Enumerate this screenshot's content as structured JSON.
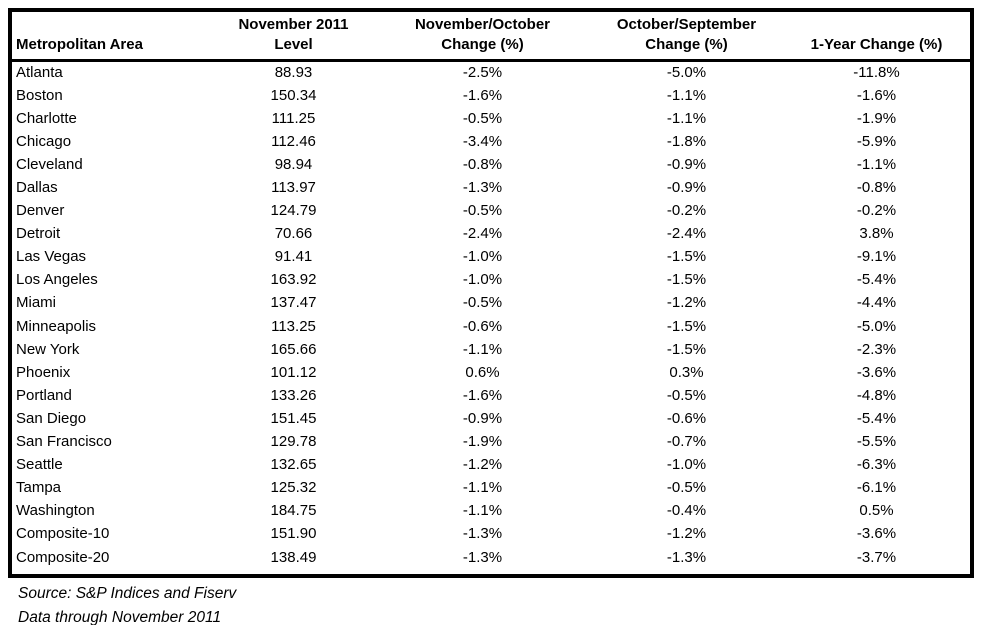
{
  "table": {
    "columns": [
      {
        "id": "metropolitan-area",
        "lines": [
          "Metropolitan Area"
        ]
      },
      {
        "id": "level",
        "lines": [
          "November 2011",
          "Level"
        ]
      },
      {
        "id": "nov-oct-change",
        "lines": [
          "November/October",
          "Change (%)"
        ]
      },
      {
        "id": "oct-sep-change",
        "lines": [
          "October/September",
          "Change (%)"
        ]
      },
      {
        "id": "one-year-change",
        "lines": [
          "1-Year Change (%)"
        ]
      }
    ],
    "rows": [
      [
        "Atlanta",
        "88.93",
        "-2.5%",
        "-5.0%",
        "-11.8%"
      ],
      [
        "Boston",
        "150.34",
        "-1.6%",
        "-1.1%",
        "-1.6%"
      ],
      [
        "Charlotte",
        "111.25",
        "-0.5%",
        "-1.1%",
        "-1.9%"
      ],
      [
        "Chicago",
        "112.46",
        "-3.4%",
        "-1.8%",
        "-5.9%"
      ],
      [
        "Cleveland",
        "98.94",
        "-0.8%",
        "-0.9%",
        "-1.1%"
      ],
      [
        "Dallas",
        "113.97",
        "-1.3%",
        "-0.9%",
        "-0.8%"
      ],
      [
        "Denver",
        "124.79",
        "-0.5%",
        "-0.2%",
        "-0.2%"
      ],
      [
        "Detroit",
        "70.66",
        "-2.4%",
        "-2.4%",
        "3.8%"
      ],
      [
        "Las Vegas",
        "91.41",
        "-1.0%",
        "-1.5%",
        "-9.1%"
      ],
      [
        "Los Angeles",
        "163.92",
        "-1.0%",
        "-1.5%",
        "-5.4%"
      ],
      [
        "Miami",
        "137.47",
        "-0.5%",
        "-1.2%",
        "-4.4%"
      ],
      [
        "Minneapolis",
        "113.25",
        "-0.6%",
        "-1.5%",
        "-5.0%"
      ],
      [
        "New York",
        "165.66",
        "-1.1%",
        "-1.5%",
        "-2.3%"
      ],
      [
        "Phoenix",
        "101.12",
        "0.6%",
        "0.3%",
        "-3.6%"
      ],
      [
        "Portland",
        "133.26",
        "-1.6%",
        "-0.5%",
        "-4.8%"
      ],
      [
        "San Diego",
        "151.45",
        "-0.9%",
        "-0.6%",
        "-5.4%"
      ],
      [
        "San Francisco",
        "129.78",
        "-1.9%",
        "-0.7%",
        "-5.5%"
      ],
      [
        "Seattle",
        "132.65",
        "-1.2%",
        "-1.0%",
        "-6.3%"
      ],
      [
        "Tampa",
        "125.32",
        "-1.1%",
        "-0.5%",
        "-6.1%"
      ],
      [
        "Washington",
        "184.75",
        "-1.1%",
        "-0.4%",
        "0.5%"
      ],
      [
        "Composite-10",
        "151.90",
        "-1.3%",
        "-1.2%",
        "-3.6%"
      ],
      [
        "Composite-20",
        "138.49",
        "-1.3%",
        "-1.3%",
        "-3.7%"
      ]
    ]
  },
  "footer": {
    "source_line": "Source: S&P Indices and Fiserv",
    "data_line": "Data through November 2011"
  },
  "colors": {
    "text": "#000000",
    "background": "#ffffff",
    "border": "#000000"
  }
}
